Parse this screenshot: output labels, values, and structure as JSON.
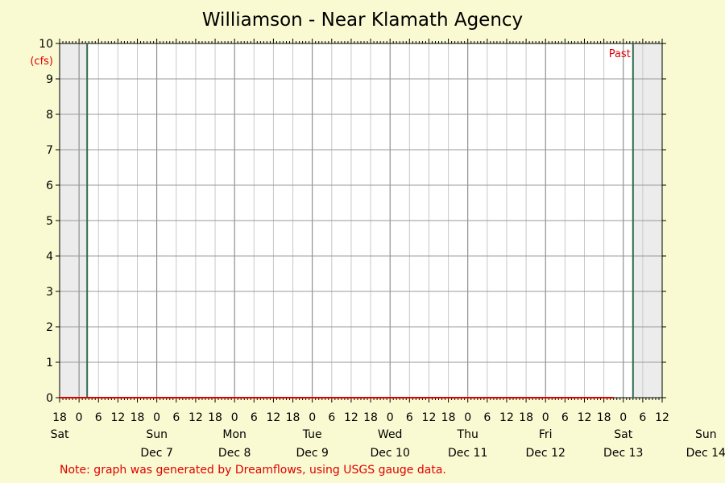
{
  "chart_data": {
    "type": "line",
    "title": "Williamson - Near Klamath Agency",
    "ylabel": "(cfs)",
    "ylim": [
      0,
      10
    ],
    "y_ticks": [
      0,
      1,
      2,
      3,
      4,
      5,
      6,
      7,
      8,
      9,
      10
    ],
    "x_range_hours": [
      "Dec 6 18:00",
      "Dec 14 12:00"
    ],
    "x_hour_ticks": [
      "18",
      "0",
      "6",
      "12",
      "18",
      "0",
      "6",
      "12",
      "18",
      "0",
      "6",
      "12",
      "18",
      "0",
      "6",
      "12",
      "18",
      "0",
      "6",
      "12",
      "18",
      "0",
      "6",
      "12",
      "18",
      "0",
      "6",
      "12",
      "18",
      "0",
      "6",
      "12"
    ],
    "days": [
      {
        "weekday": "Sat",
        "date": ""
      },
      {
        "weekday": "Sun",
        "date": "Dec 7"
      },
      {
        "weekday": "Mon",
        "date": "Dec 8"
      },
      {
        "weekday": "Tue",
        "date": "Dec 9"
      },
      {
        "weekday": "Wed",
        "date": "Dec 10"
      },
      {
        "weekday": "Thu",
        "date": "Dec 11"
      },
      {
        "weekday": "Fri",
        "date": "Dec 12"
      },
      {
        "weekday": "Sat",
        "date": "Dec 13"
      },
      {
        "weekday": "Sun",
        "date": "Dec 14"
      }
    ],
    "past_label": "Past",
    "series": [
      {
        "values": [
          [
            0,
            0
          ],
          [
            171,
            0
          ]
        ],
        "color": "#e00000"
      }
    ],
    "markers": [
      {
        "at_hour": 8.5,
        "color": "#2e6b4f"
      },
      {
        "at_hour": 177,
        "color": "#2e6b4f"
      }
    ],
    "shaded_before_hour": 8.5,
    "shaded_after_hour": 177,
    "grid": true
  },
  "title": "Williamson - Near Klamath Agency",
  "footnote": "Note: graph was generated by Dreamflows, using USGS gauge data."
}
